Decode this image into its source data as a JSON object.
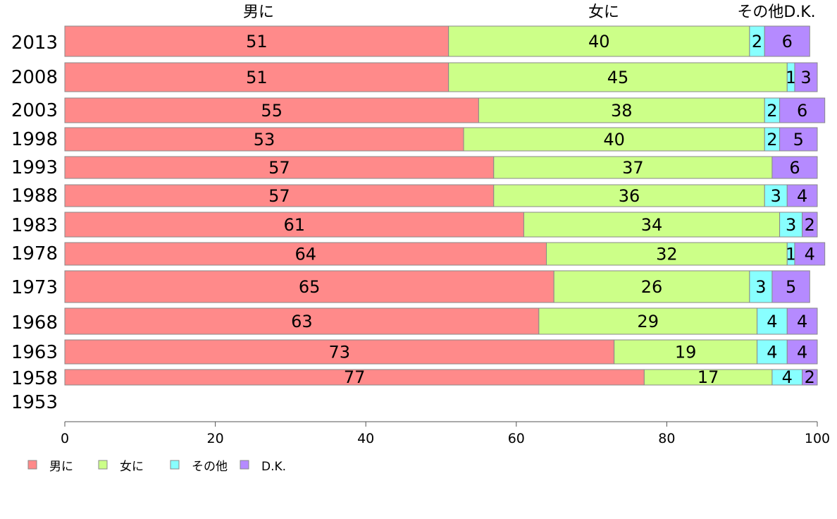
{
  "chart_data": {
    "type": "bar",
    "orientation": "horizontal",
    "stacked": true,
    "categories": [
      "2013",
      "2008",
      "2003",
      "1998",
      "1993",
      "1988",
      "1983",
      "1978",
      "1973",
      "1968",
      "1963",
      "1958",
      "1953"
    ],
    "series": [
      {
        "name": "男に",
        "color": "#ff8a8a",
        "values": [
          51,
          51,
          55,
          53,
          57,
          57,
          61,
          64,
          65,
          63,
          73,
          77,
          null
        ]
      },
      {
        "name": "女に",
        "color": "#ccff88",
        "values": [
          40,
          45,
          38,
          40,
          37,
          36,
          34,
          32,
          26,
          29,
          19,
          17,
          null
        ]
      },
      {
        "name": "その他",
        "color": "#88ffff",
        "values": [
          2,
          1,
          2,
          2,
          0,
          3,
          3,
          1,
          3,
          4,
          4,
          4,
          null
        ]
      },
      {
        "name": "D.K.",
        "color": "#b58aff",
        "values": [
          6,
          3,
          6,
          5,
          6,
          4,
          2,
          4,
          5,
          4,
          4,
          2,
          null
        ]
      }
    ],
    "column_headers": [
      "男に",
      "女に",
      "その他D.K."
    ],
    "xlim": [
      0,
      100
    ],
    "xticks": [
      0,
      20,
      40,
      60,
      80,
      100
    ],
    "grid": false,
    "legend_position": "bottom-left"
  }
}
